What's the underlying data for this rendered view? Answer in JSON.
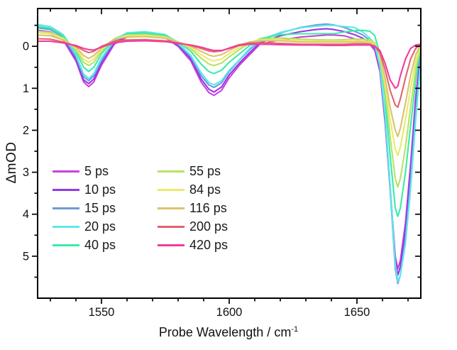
{
  "figure": {
    "ylabel": "ΔmOD",
    "xlabel": "Probe Wavelength / cm",
    "xlabel_sup": "-1"
  },
  "chart_data": {
    "type": "line",
    "title": "",
    "xlabel": "Probe Wavelength / cm⁻¹",
    "ylabel": "ΔmOD",
    "xlim": [
      1525,
      1675
    ],
    "ylim_top": -0.9,
    "ylim_bottom": 6.0,
    "y_axis_reversed": true,
    "grid": false,
    "legend_position": "inside lower-left, two columns",
    "x_major_ticks": [
      1550,
      1600,
      1650
    ],
    "x_major_tick_labels": [
      "1550",
      "1600",
      "1650"
    ],
    "x_minor_ticks": [
      1530,
      1540,
      1560,
      1570,
      1580,
      1590,
      1610,
      1620,
      1630,
      1640,
      1660,
      1670
    ],
    "y_major_ticks": [
      0,
      1,
      2,
      3,
      4,
      5
    ],
    "y_major_tick_labels": [
      "0",
      "1",
      "2",
      "3",
      "4",
      "5"
    ],
    "y_minor_ticks": [
      -0.5,
      0.5,
      1.5,
      2.5,
      3.5,
      4.5,
      5.5
    ],
    "frame_color": "#000000",
    "x": [
      1525,
      1530,
      1535,
      1540,
      1543,
      1545,
      1547,
      1550,
      1555,
      1560,
      1567,
      1575,
      1580,
      1585,
      1589,
      1592,
      1594,
      1597,
      1600,
      1604,
      1608,
      1612,
      1620,
      1628,
      1634,
      1638,
      1641,
      1645,
      1649,
      1652,
      1655,
      1657,
      1659,
      1661,
      1663,
      1665,
      1666,
      1667,
      1669,
      1671,
      1673,
      1675
    ],
    "series": [
      {
        "name": "5 ps",
        "color": "#CB41DC",
        "values": [
          -0.33,
          -0.3,
          -0.15,
          0.35,
          0.85,
          0.96,
          0.85,
          0.45,
          -0.05,
          -0.22,
          -0.25,
          -0.2,
          0.0,
          0.35,
          0.85,
          1.1,
          1.17,
          1.05,
          0.75,
          0.45,
          0.2,
          -0.05,
          -0.15,
          -0.22,
          -0.25,
          -0.27,
          -0.27,
          -0.25,
          -0.18,
          -0.12,
          -0.05,
          0.1,
          0.6,
          1.8,
          3.4,
          5.0,
          5.3,
          5.1,
          4.2,
          2.8,
          1.2,
          0.1
        ]
      },
      {
        "name": "10 ps",
        "color": "#9338E8",
        "values": [
          -0.38,
          -0.34,
          -0.18,
          0.3,
          0.8,
          0.89,
          0.78,
          0.4,
          -0.08,
          -0.25,
          -0.28,
          -0.22,
          -0.02,
          0.3,
          0.78,
          1.02,
          1.09,
          0.97,
          0.68,
          0.4,
          0.15,
          -0.08,
          -0.25,
          -0.35,
          -0.4,
          -0.42,
          -0.4,
          -0.35,
          -0.28,
          -0.2,
          -0.1,
          0.05,
          0.55,
          1.75,
          3.35,
          5.1,
          5.45,
          5.25,
          4.35,
          2.95,
          1.35,
          0.15
        ]
      },
      {
        "name": "15 ps",
        "color": "#6C9BD8",
        "values": [
          -0.44,
          -0.4,
          -0.22,
          0.25,
          0.72,
          0.82,
          0.7,
          0.33,
          -0.12,
          -0.28,
          -0.32,
          -0.25,
          -0.05,
          0.25,
          0.7,
          0.92,
          0.98,
          0.87,
          0.6,
          0.33,
          0.08,
          -0.12,
          -0.32,
          -0.45,
          -0.51,
          -0.53,
          -0.51,
          -0.45,
          -0.36,
          -0.28,
          -0.15,
          0.0,
          0.5,
          1.7,
          3.4,
          5.3,
          5.65,
          5.45,
          4.6,
          3.2,
          1.55,
          0.25
        ]
      },
      {
        "name": "20 ps",
        "color": "#5CE8EA",
        "values": [
          -0.52,
          -0.47,
          -0.28,
          0.2,
          0.66,
          0.77,
          0.65,
          0.28,
          -0.15,
          -0.32,
          -0.35,
          -0.28,
          -0.08,
          0.22,
          0.63,
          0.86,
          0.92,
          0.82,
          0.57,
          0.32,
          0.05,
          -0.15,
          -0.33,
          -0.44,
          -0.48,
          -0.5,
          -0.5,
          -0.47,
          -0.45,
          -0.35,
          -0.2,
          -0.05,
          0.45,
          1.6,
          3.3,
          5.2,
          5.6,
          5.45,
          4.7,
          3.4,
          1.75,
          0.35
        ]
      },
      {
        "name": "40 ps",
        "color": "#3BEBA7",
        "values": [
          -0.48,
          -0.43,
          -0.25,
          0.12,
          0.5,
          0.6,
          0.5,
          0.18,
          -0.18,
          -0.3,
          -0.32,
          -0.26,
          -0.1,
          0.12,
          0.42,
          0.6,
          0.65,
          0.57,
          0.38,
          0.18,
          -0.02,
          -0.18,
          -0.28,
          -0.3,
          -0.3,
          -0.3,
          -0.3,
          -0.34,
          -0.37,
          -0.38,
          -0.36,
          -0.25,
          0.2,
          1.2,
          2.6,
          3.85,
          4.05,
          3.85,
          3.0,
          1.9,
          0.8,
          0.0
        ]
      },
      {
        "name": "55 ps",
        "color": "#B9E266",
        "values": [
          -0.36,
          -0.33,
          -0.2,
          0.08,
          0.38,
          0.46,
          0.38,
          0.12,
          -0.18,
          -0.27,
          -0.28,
          -0.23,
          -0.1,
          0.06,
          0.28,
          0.42,
          0.46,
          0.4,
          0.25,
          0.08,
          -0.08,
          -0.17,
          -0.2,
          -0.17,
          -0.16,
          -0.15,
          -0.15,
          -0.16,
          -0.17,
          -0.17,
          -0.15,
          -0.08,
          0.25,
          1.05,
          2.15,
          3.15,
          3.35,
          3.15,
          2.4,
          1.45,
          0.55,
          -0.05
        ]
      },
      {
        "name": "84 ps",
        "color": "#EAEA6E",
        "values": [
          -0.33,
          -0.3,
          -0.18,
          0.05,
          0.3,
          0.38,
          0.3,
          0.08,
          -0.18,
          -0.25,
          -0.26,
          -0.21,
          -0.1,
          0.03,
          0.2,
          0.31,
          0.35,
          0.3,
          0.17,
          0.03,
          -0.1,
          -0.15,
          -0.16,
          -0.13,
          -0.12,
          -0.12,
          -0.12,
          -0.12,
          -0.13,
          -0.13,
          -0.11,
          -0.05,
          0.22,
          0.9,
          1.75,
          2.45,
          2.6,
          2.4,
          1.75,
          1.0,
          0.35,
          -0.05
        ]
      },
      {
        "name": "116 ps",
        "color": "#DCC271",
        "values": [
          -0.27,
          -0.25,
          -0.15,
          0.02,
          0.22,
          0.29,
          0.22,
          0.04,
          -0.17,
          -0.22,
          -0.23,
          -0.19,
          -0.1,
          0.0,
          0.12,
          0.21,
          0.24,
          0.2,
          0.1,
          -0.02,
          -0.1,
          -0.13,
          -0.13,
          -0.1,
          -0.1,
          -0.1,
          -0.1,
          -0.1,
          -0.1,
          -0.1,
          -0.08,
          -0.02,
          0.2,
          0.75,
          1.45,
          2.0,
          2.15,
          1.95,
          1.35,
          0.7,
          0.2,
          -0.05
        ]
      },
      {
        "name": "200 ps",
        "color": "#E2646C",
        "values": [
          -0.18,
          -0.17,
          -0.1,
          0.0,
          0.1,
          0.15,
          0.12,
          0.0,
          -0.12,
          -0.15,
          -0.16,
          -0.13,
          -0.08,
          -0.02,
          0.05,
          0.11,
          0.13,
          0.11,
          0.04,
          -0.04,
          -0.08,
          -0.08,
          -0.07,
          -0.05,
          -0.05,
          -0.05,
          -0.05,
          -0.05,
          -0.06,
          -0.06,
          -0.05,
          0.0,
          0.15,
          0.55,
          1.05,
          1.4,
          1.45,
          1.25,
          0.75,
          0.3,
          0.05,
          -0.05
        ]
      },
      {
        "name": "420 ps",
        "color": "#F23C9D",
        "values": [
          -0.12,
          -0.12,
          -0.08,
          -0.02,
          0.05,
          0.08,
          0.09,
          0.02,
          -0.08,
          -0.12,
          -0.13,
          -0.11,
          -0.07,
          -0.03,
          0.02,
          0.07,
          0.1,
          0.1,
          0.05,
          -0.02,
          -0.05,
          -0.05,
          -0.04,
          -0.03,
          -0.03,
          -0.02,
          -0.02,
          -0.02,
          -0.03,
          -0.03,
          -0.03,
          0.0,
          0.1,
          0.4,
          0.8,
          1.0,
          0.95,
          0.7,
          0.3,
          0.05,
          -0.03,
          -0.05
        ]
      }
    ],
    "legend_column1": [
      "5 ps",
      "10 ps",
      "15 ps",
      "20 ps",
      "40 ps"
    ],
    "legend_column2": [
      "55 ps",
      "84 ps",
      "116 ps",
      "200 ps",
      "420 ps"
    ]
  }
}
